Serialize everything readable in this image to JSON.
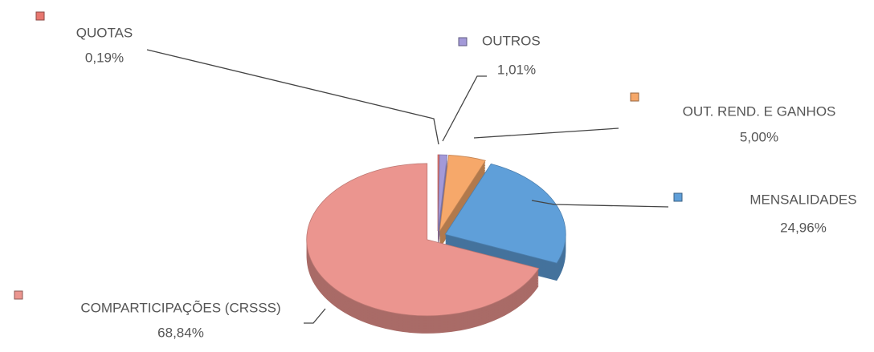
{
  "chart_data": {
    "type": "pie",
    "categories": [
      "QUOTAS",
      "OUTROS",
      "OUT. REND. E GANHOS",
      "MENSALIDADES",
      "COMPARTICIPAÇÕES (CRSSS)"
    ],
    "values": [
      0.19,
      1.01,
      5.0,
      24.96,
      68.84
    ],
    "value_labels": [
      "0,19%",
      "1,01%",
      "5,00%",
      "24,96%",
      "68,84%"
    ],
    "colors": [
      "#e8776f",
      "#a399d8",
      "#f6a86a",
      "#5f9fd9",
      "#eb958f"
    ]
  }
}
